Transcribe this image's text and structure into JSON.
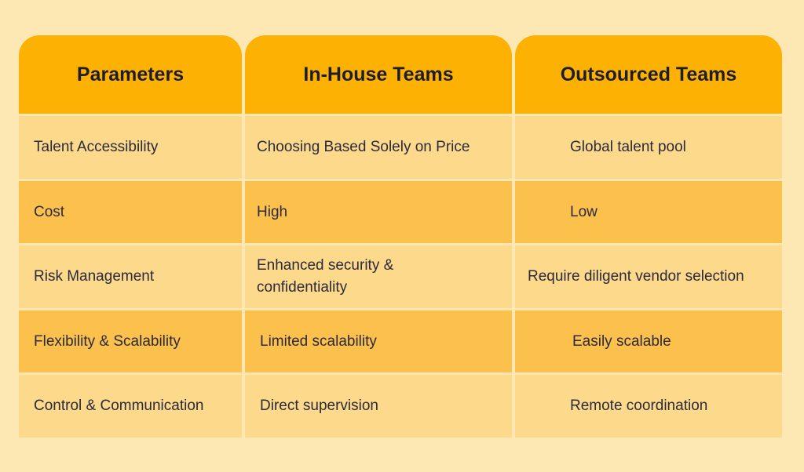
{
  "headers": [
    "Parameters",
    "In-House Teams",
    "Outsourced Teams"
  ],
  "rows": [
    [
      "Talent Accessibility",
      "Choosing Based Solely on Price",
      "Global talent pool"
    ],
    [
      "Cost",
      "High",
      "Low"
    ],
    [
      "Risk Management",
      "Enhanced security & confidentiality",
      "Require diligent vendor selection"
    ],
    [
      "Flexibility & Scalability",
      "Limited scalability",
      "Easily scalable"
    ],
    [
      "Control & Communication",
      "Direct supervision",
      "Remote coordination"
    ]
  ],
  "colors": {
    "background": "#fde7b3",
    "header": "#fcb103",
    "row_light": "#fdd98c",
    "row_dark": "#fcc14d",
    "text": "#2a2a3a"
  }
}
